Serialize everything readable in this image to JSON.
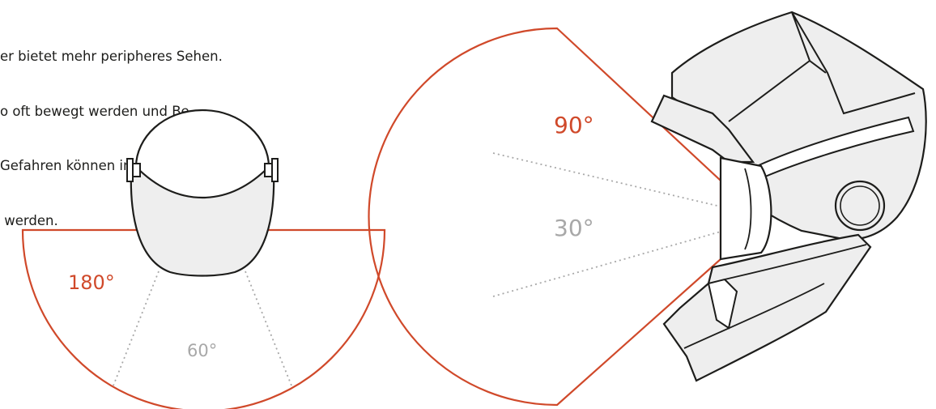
{
  "description": {
    "lines": [
      "er bietet mehr peripheres Sehen.",
      "o oft bewegt werden und Be-",
      "Gefahren können im Randbereich schon",
      " werden."
    ]
  },
  "top_view": {
    "outer_angle_label": "180°",
    "inner_angle_label": "60°"
  },
  "side_view": {
    "outer_angle_label": "90°",
    "inner_angle_label": "30°"
  },
  "colors": {
    "accent": "#d0492a",
    "muted": "#a8a8a8",
    "stroke": "#1d1d1b",
    "fill": "#eeeeee"
  }
}
